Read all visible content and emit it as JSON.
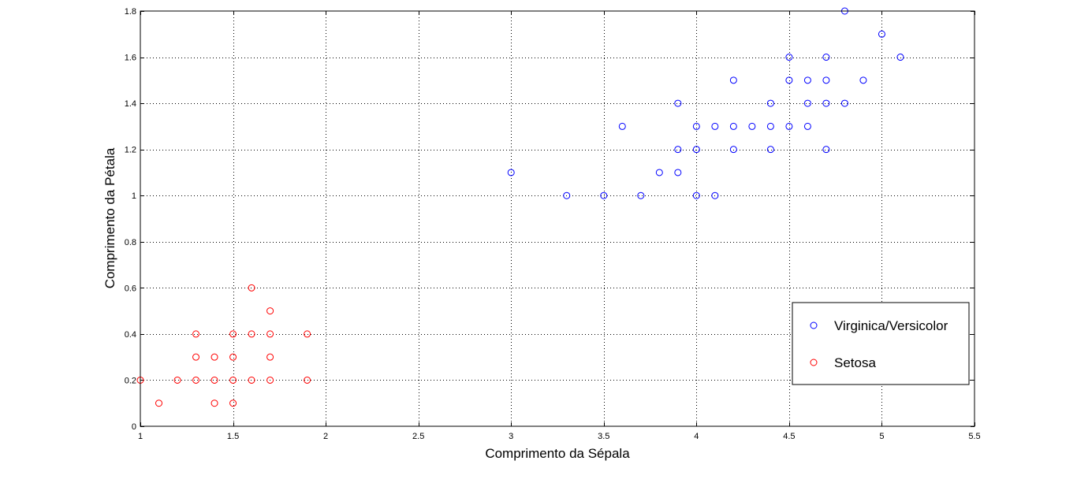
{
  "chart_data": {
    "type": "scatter",
    "title": "",
    "xlabel": "Comprimento da Sépala",
    "ylabel": "Comprimento da Pétala",
    "xlim": [
      1,
      5.5
    ],
    "ylim": [
      0,
      1.8
    ],
    "xticks": [
      1,
      1.5,
      2,
      2.5,
      3,
      3.5,
      4,
      4.5,
      5,
      5.5
    ],
    "xtick_labels": [
      "1",
      "1.5",
      "2",
      "2.5",
      "3",
      "3.5",
      "4",
      "4.5",
      "5",
      "5.5"
    ],
    "yticks": [
      0,
      0.2,
      0.4,
      0.6,
      0.8,
      1,
      1.2,
      1.4,
      1.6,
      1.8
    ],
    "ytick_labels": [
      "0",
      "0.2",
      "0.4",
      "0.6",
      "0.8",
      "1",
      "1.2",
      "1.4",
      "1.6",
      "1.8"
    ],
    "grid": true,
    "legend_position": "bottom-right",
    "series": [
      {
        "name": "Virginica/Versicolor",
        "color": "#0000ff",
        "marker": "circle-open",
        "points": [
          [
            3.0,
            1.1
          ],
          [
            3.3,
            1.0
          ],
          [
            3.5,
            1.0
          ],
          [
            3.6,
            1.3
          ],
          [
            3.7,
            1.0
          ],
          [
            3.8,
            1.1
          ],
          [
            3.9,
            1.1
          ],
          [
            3.9,
            1.2
          ],
          [
            3.9,
            1.4
          ],
          [
            4.0,
            1.0
          ],
          [
            4.0,
            1.2
          ],
          [
            4.0,
            1.3
          ],
          [
            4.1,
            1.0
          ],
          [
            4.1,
            1.3
          ],
          [
            4.2,
            1.2
          ],
          [
            4.2,
            1.3
          ],
          [
            4.2,
            1.5
          ],
          [
            4.3,
            1.3
          ],
          [
            4.4,
            1.2
          ],
          [
            4.4,
            1.3
          ],
          [
            4.4,
            1.4
          ],
          [
            4.5,
            1.3
          ],
          [
            4.5,
            1.5
          ],
          [
            4.5,
            1.6
          ],
          [
            4.6,
            1.3
          ],
          [
            4.6,
            1.4
          ],
          [
            4.6,
            1.5
          ],
          [
            4.7,
            1.2
          ],
          [
            4.7,
            1.4
          ],
          [
            4.7,
            1.5
          ],
          [
            4.7,
            1.6
          ],
          [
            4.8,
            1.4
          ],
          [
            4.8,
            1.8
          ],
          [
            4.9,
            1.5
          ],
          [
            5.0,
            1.7
          ],
          [
            5.1,
            1.6
          ]
        ]
      },
      {
        "name": "Setosa",
        "color": "#ff0000",
        "marker": "circle-open",
        "points": [
          [
            1.0,
            0.2
          ],
          [
            1.1,
            0.1
          ],
          [
            1.2,
            0.2
          ],
          [
            1.3,
            0.2
          ],
          [
            1.3,
            0.3
          ],
          [
            1.3,
            0.4
          ],
          [
            1.4,
            0.1
          ],
          [
            1.4,
            0.2
          ],
          [
            1.4,
            0.3
          ],
          [
            1.5,
            0.1
          ],
          [
            1.5,
            0.2
          ],
          [
            1.5,
            0.3
          ],
          [
            1.5,
            0.4
          ],
          [
            1.6,
            0.2
          ],
          [
            1.6,
            0.4
          ],
          [
            1.6,
            0.6
          ],
          [
            1.7,
            0.2
          ],
          [
            1.7,
            0.3
          ],
          [
            1.7,
            0.4
          ],
          [
            1.7,
            0.5
          ],
          [
            1.9,
            0.2
          ],
          [
            1.9,
            0.4
          ]
        ]
      }
    ]
  }
}
